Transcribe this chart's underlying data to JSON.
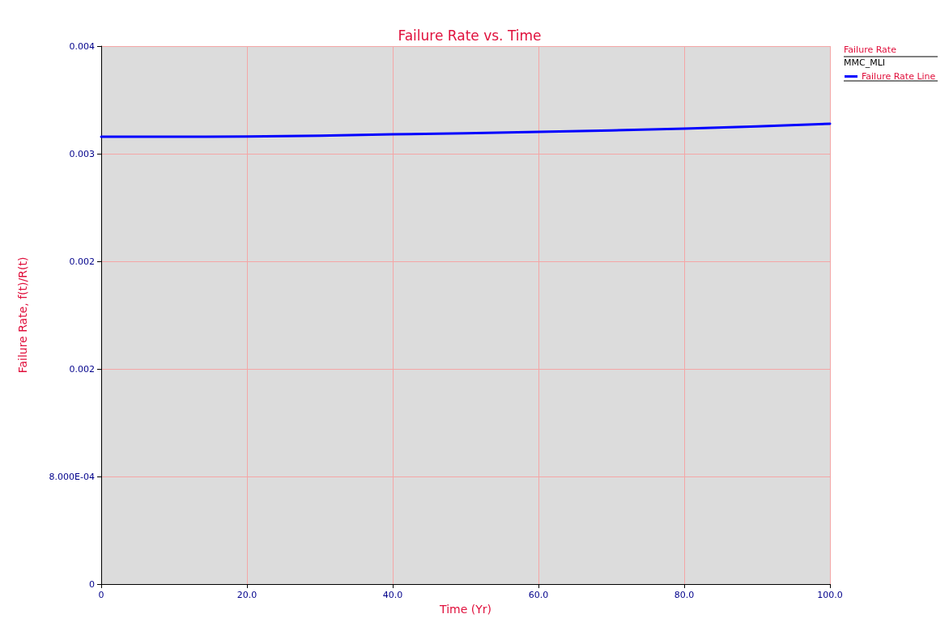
{
  "chart_data": {
    "type": "line",
    "title": "Failure Rate vs. Time",
    "xlabel": "Time (Yr)",
    "ylabel": "Failure Rate, f(t)/R(t)",
    "legend_title": "Failure Rate",
    "annotations": [
      "MMC_MLI"
    ],
    "x": [
      0,
      10,
      20,
      30,
      40,
      50,
      60,
      70,
      80,
      90,
      100
    ],
    "series": [
      {
        "name": "Failure Rate Line",
        "color": "#0000ff",
        "values": [
          0.003326,
          0.003326,
          0.003328,
          0.003334,
          0.003344,
          0.003352,
          0.003362,
          0.003373,
          0.003386,
          0.003403,
          0.003423
        ]
      }
    ],
    "xlim": [
      0,
      100
    ],
    "xticks": [
      0,
      {
        "value": 20,
        "label": "20.0"
      },
      {
        "value": 40,
        "label": "40.0"
      },
      {
        "value": 60,
        "label": "60.0"
      },
      {
        "value": 80,
        "label": "80.0"
      },
      {
        "value": 100,
        "label": "100.0"
      }
    ],
    "ylim": [
      0,
      0.004
    ],
    "yticks": [
      0,
      {
        "value": 0.0008,
        "label": "8.000E-04"
      },
      {
        "value": 0.0016,
        "label": "0.002"
      },
      {
        "value": 0.0024,
        "label": "0.002"
      },
      {
        "value": 0.0032,
        "label": "0.003"
      },
      {
        "value": 0.004,
        "label": "0.004"
      }
    ],
    "grid": true,
    "legend": "top right",
    "marker": "none",
    "line_style": "solid"
  }
}
